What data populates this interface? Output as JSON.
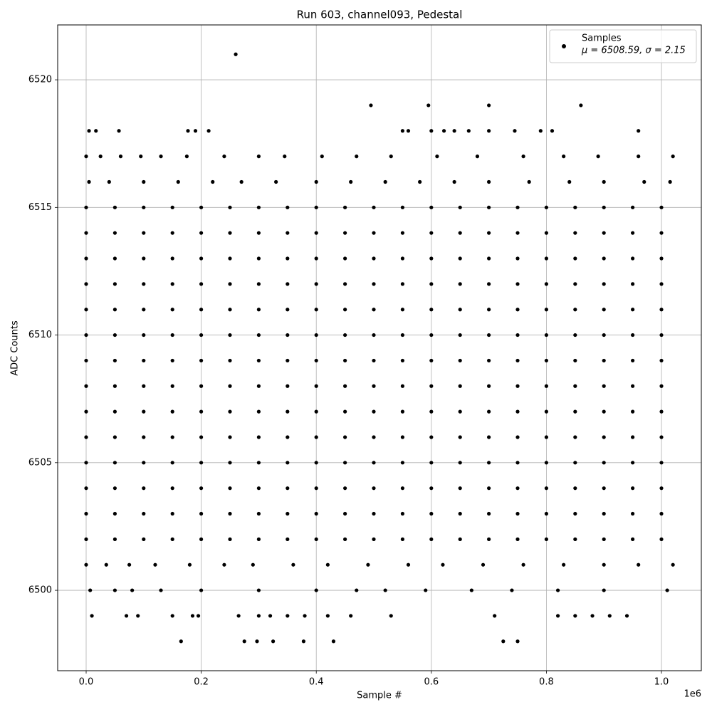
{
  "chart_data": {
    "type": "scatter",
    "title": "Run 603, channel093, Pedestal",
    "x_label": "Sample #",
    "y_label": "ADC Counts",
    "x_offset_label": "1e6",
    "xlim": [
      -49500,
      1069300
    ],
    "ylim": [
      6496.85,
      6522.15
    ],
    "xticks": [
      {
        "value": 0,
        "label": "0.0"
      },
      {
        "value": 200000,
        "label": "0.2"
      },
      {
        "value": 400000,
        "label": "0.4"
      },
      {
        "value": 600000,
        "label": "0.6"
      },
      {
        "value": 800000,
        "label": "0.8"
      },
      {
        "value": 1000000,
        "label": "1.0"
      }
    ],
    "yticks": [
      6500,
      6505,
      6510,
      6515,
      6520
    ],
    "grid": true,
    "legend": "upper right",
    "stats_label": "μ = 6508.59, σ = 2.15",
    "series": [
      {
        "name": "Samples",
        "color": "#000000",
        "x": [
          260000,
          495000,
          595000,
          700000,
          860000,
          5000,
          17000,
          57000,
          177000,
          190000,
          213000,
          550000,
          560000,
          600000,
          622000,
          640000,
          665000,
          700000,
          745000,
          790000,
          810000,
          960000,
          0,
          25000,
          60000,
          95000,
          130000,
          175000,
          240000,
          300000,
          345000,
          410000,
          470000,
          530000,
          610000,
          680000,
          760000,
          830000,
          890000,
          960000,
          1020000,
          5000,
          40000,
          100000,
          160000,
          220000,
          270000,
          330000,
          400000,
          460000,
          520000,
          580000,
          640000,
          700000,
          770000,
          840000,
          900000,
          970000,
          1015000,
          0,
          35000,
          75000,
          120000,
          180000,
          240000,
          290000,
          360000,
          420000,
          490000,
          560000,
          620000,
          690000,
          760000,
          830000,
          900000,
          960000,
          1020000,
          7000,
          50000,
          80000,
          130000,
          200000,
          300000,
          400000,
          470000,
          520000,
          590000,
          670000,
          740000,
          820000,
          900000,
          1010000,
          10000,
          70000,
          90000,
          150000,
          185000,
          195000,
          265000,
          300000,
          320000,
          350000,
          380000,
          420000,
          460000,
          530000,
          710000,
          820000,
          850000,
          880000,
          910000,
          940000,
          165000,
          275000,
          297000,
          325000,
          378000,
          430000,
          725000,
          750000,
          0,
          50000,
          100000,
          150000,
          200000,
          250000,
          300000,
          350000,
          400000,
          450000,
          500000,
          550000,
          600000,
          650000,
          700000,
          750000,
          800000,
          850000,
          900000,
          950000,
          1000000,
          0,
          50000,
          100000,
          150000,
          200000,
          250000,
          300000,
          350000,
          400000,
          450000,
          500000,
          550000,
          600000,
          650000,
          700000,
          750000,
          800000,
          850000,
          900000,
          950000,
          1000000,
          0,
          50000,
          100000,
          150000,
          200000,
          250000,
          300000,
          350000,
          400000,
          450000,
          500000,
          550000,
          600000,
          650000,
          700000,
          750000,
          800000,
          850000,
          900000,
          950000,
          1000000,
          0,
          50000,
          100000,
          150000,
          200000,
          250000,
          300000,
          350000,
          400000,
          450000,
          500000,
          550000,
          600000,
          650000,
          700000,
          750000,
          800000,
          850000,
          900000,
          950000,
          1000000,
          0,
          50000,
          100000,
          150000,
          200000,
          250000,
          300000,
          350000,
          400000,
          450000,
          500000,
          550000,
          600000,
          650000,
          700000,
          750000,
          800000,
          850000,
          900000,
          950000,
          1000000,
          0,
          50000,
          100000,
          150000,
          200000,
          250000,
          300000,
          350000,
          400000,
          450000,
          500000,
          550000,
          600000,
          650000,
          700000,
          750000,
          800000,
          850000,
          900000,
          950000,
          1000000,
          0,
          50000,
          100000,
          150000,
          200000,
          250000,
          300000,
          350000,
          400000,
          450000,
          500000,
          550000,
          600000,
          650000,
          700000,
          750000,
          800000,
          850000,
          900000,
          950000,
          1000000,
          0,
          50000,
          100000,
          150000,
          200000,
          250000,
          300000,
          350000,
          400000,
          450000,
          500000,
          550000,
          600000,
          650000,
          700000,
          750000,
          800000,
          850000,
          900000,
          950000,
          1000000,
          0,
          50000,
          100000,
          150000,
          200000,
          250000,
          300000,
          350000,
          400000,
          450000,
          500000,
          550000,
          600000,
          650000,
          700000,
          750000,
          800000,
          850000,
          900000,
          950000,
          1000000,
          0,
          50000,
          100000,
          150000,
          200000,
          250000,
          300000,
          350000,
          400000,
          450000,
          500000,
          550000,
          600000,
          650000,
          700000,
          750000,
          800000,
          850000,
          900000,
          950000,
          1000000,
          0,
          50000,
          100000,
          150000,
          200000,
          250000,
          300000,
          350000,
          400000,
          450000,
          500000,
          550000,
          600000,
          650000,
          700000,
          750000,
          800000,
          850000,
          900000,
          950000,
          1000000,
          0,
          50000,
          100000,
          150000,
          200000,
          250000,
          300000,
          350000,
          400000,
          450000,
          500000,
          550000,
          600000,
          650000,
          700000,
          750000,
          800000,
          850000,
          900000,
          950000,
          1000000,
          0,
          50000,
          100000,
          150000,
          200000,
          250000,
          300000,
          350000,
          400000,
          450000,
          500000,
          550000,
          600000,
          650000,
          700000,
          750000,
          800000,
          850000,
          900000,
          950000,
          1000000,
          0,
          50000,
          100000,
          150000,
          200000,
          250000,
          300000,
          350000,
          400000,
          450000,
          500000,
          550000,
          600000,
          650000,
          700000,
          750000,
          800000,
          850000,
          900000,
          950000,
          1000000
        ],
        "values": [
          6521,
          6519,
          6519,
          6519,
          6519,
          6518,
          6518,
          6518,
          6518,
          6518,
          6518,
          6518,
          6518,
          6518,
          6518,
          6518,
          6518,
          6518,
          6518,
          6518,
          6518,
          6518,
          6517,
          6517,
          6517,
          6517,
          6517,
          6517,
          6517,
          6517,
          6517,
          6517,
          6517,
          6517,
          6517,
          6517,
          6517,
          6517,
          6517,
          6517,
          6517,
          6516,
          6516,
          6516,
          6516,
          6516,
          6516,
          6516,
          6516,
          6516,
          6516,
          6516,
          6516,
          6516,
          6516,
          6516,
          6516,
          6516,
          6516,
          6501,
          6501,
          6501,
          6501,
          6501,
          6501,
          6501,
          6501,
          6501,
          6501,
          6501,
          6501,
          6501,
          6501,
          6501,
          6501,
          6501,
          6501,
          6500,
          6500,
          6500,
          6500,
          6500,
          6500,
          6500,
          6500,
          6500,
          6500,
          6500,
          6500,
          6500,
          6500,
          6500,
          6499,
          6499,
          6499,
          6499,
          6499,
          6499,
          6499,
          6499,
          6499,
          6499,
          6499,
          6499,
          6499,
          6499,
          6499,
          6499,
          6499,
          6499,
          6499,
          6499,
          6498,
          6498,
          6498,
          6498,
          6498,
          6498,
          6498,
          6498,
          6502,
          6502,
          6502,
          6502,
          6502,
          6502,
          6502,
          6502,
          6502,
          6502,
          6502,
          6502,
          6502,
          6502,
          6502,
          6502,
          6502,
          6502,
          6502,
          6502,
          6502,
          6503,
          6503,
          6503,
          6503,
          6503,
          6503,
          6503,
          6503,
          6503,
          6503,
          6503,
          6503,
          6503,
          6503,
          6503,
          6503,
          6503,
          6503,
          6503,
          6503,
          6503,
          6504,
          6504,
          6504,
          6504,
          6504,
          6504,
          6504,
          6504,
          6504,
          6504,
          6504,
          6504,
          6504,
          6504,
          6504,
          6504,
          6504,
          6504,
          6504,
          6504,
          6504,
          6505,
          6505,
          6505,
          6505,
          6505,
          6505,
          6505,
          6505,
          6505,
          6505,
          6505,
          6505,
          6505,
          6505,
          6505,
          6505,
          6505,
          6505,
          6505,
          6505,
          6505,
          6506,
          6506,
          6506,
          6506,
          6506,
          6506,
          6506,
          6506,
          6506,
          6506,
          6506,
          6506,
          6506,
          6506,
          6506,
          6506,
          6506,
          6506,
          6506,
          6506,
          6506,
          6507,
          6507,
          6507,
          6507,
          6507,
          6507,
          6507,
          6507,
          6507,
          6507,
          6507,
          6507,
          6507,
          6507,
          6507,
          6507,
          6507,
          6507,
          6507,
          6507,
          6507,
          6508,
          6508,
          6508,
          6508,
          6508,
          6508,
          6508,
          6508,
          6508,
          6508,
          6508,
          6508,
          6508,
          6508,
          6508,
          6508,
          6508,
          6508,
          6508,
          6508,
          6508,
          6509,
          6509,
          6509,
          6509,
          6509,
          6509,
          6509,
          6509,
          6509,
          6509,
          6509,
          6509,
          6509,
          6509,
          6509,
          6509,
          6509,
          6509,
          6509,
          6509,
          6509,
          6510,
          6510,
          6510,
          6510,
          6510,
          6510,
          6510,
          6510,
          6510,
          6510,
          6510,
          6510,
          6510,
          6510,
          6510,
          6510,
          6510,
          6510,
          6510,
          6510,
          6510,
          6511,
          6511,
          6511,
          6511,
          6511,
          6511,
          6511,
          6511,
          6511,
          6511,
          6511,
          6511,
          6511,
          6511,
          6511,
          6511,
          6511,
          6511,
          6511,
          6511,
          6511,
          6512,
          6512,
          6512,
          6512,
          6512,
          6512,
          6512,
          6512,
          6512,
          6512,
          6512,
          6512,
          6512,
          6512,
          6512,
          6512,
          6512,
          6512,
          6512,
          6512,
          6512,
          6513,
          6513,
          6513,
          6513,
          6513,
          6513,
          6513,
          6513,
          6513,
          6513,
          6513,
          6513,
          6513,
          6513,
          6513,
          6513,
          6513,
          6513,
          6513,
          6513,
          6513,
          6514,
          6514,
          6514,
          6514,
          6514,
          6514,
          6514,
          6514,
          6514,
          6514,
          6514,
          6514,
          6514,
          6514,
          6514,
          6514,
          6514,
          6514,
          6514,
          6514,
          6514,
          6515,
          6515,
          6515,
          6515,
          6515,
          6515,
          6515,
          6515,
          6515,
          6515,
          6515,
          6515,
          6515,
          6515,
          6515,
          6515,
          6515,
          6515,
          6515,
          6515,
          6515
        ]
      }
    ]
  }
}
